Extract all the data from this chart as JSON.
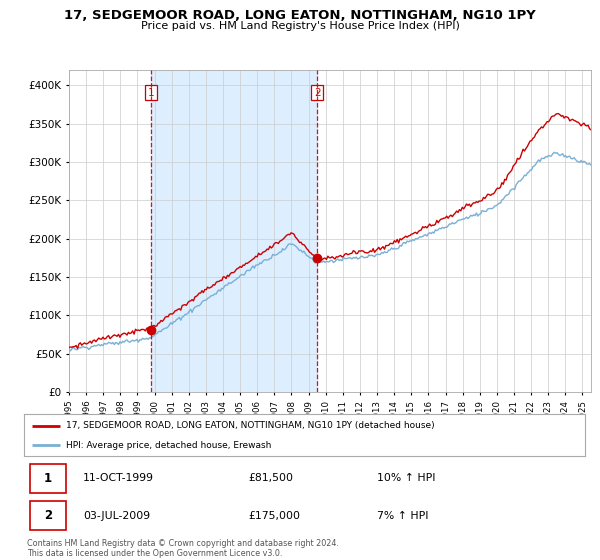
{
  "title": "17, SEDGEMOOR ROAD, LONG EATON, NOTTINGHAM, NG10 1PY",
  "subtitle": "Price paid vs. HM Land Registry's House Price Index (HPI)",
  "sale1_date": "11-OCT-1999",
  "sale1_price": 81500,
  "sale1_hpi": "10% ↑ HPI",
  "sale2_date": "03-JUL-2009",
  "sale2_price": 175000,
  "sale2_hpi": "7% ↑ HPI",
  "legend_line1": "17, SEDGEMOOR ROAD, LONG EATON, NOTTINGHAM, NG10 1PY (detached house)",
  "legend_line2": "HPI: Average price, detached house, Erewash",
  "footer": "Contains HM Land Registry data © Crown copyright and database right 2024.\nThis data is licensed under the Open Government Licence v3.0.",
  "sale1_x": 1999.78,
  "sale2_x": 2009.5,
  "line_color_red": "#cc0000",
  "line_color_blue": "#7ab0d4",
  "shade_color": "#ddeeff",
  "vline_color": "#cc0000",
  "background_color": "#ffffff",
  "grid_color": "#cccccc",
  "ylim": [
    0,
    420000
  ],
  "xlim_start": 1995,
  "xlim_end": 2025.5
}
